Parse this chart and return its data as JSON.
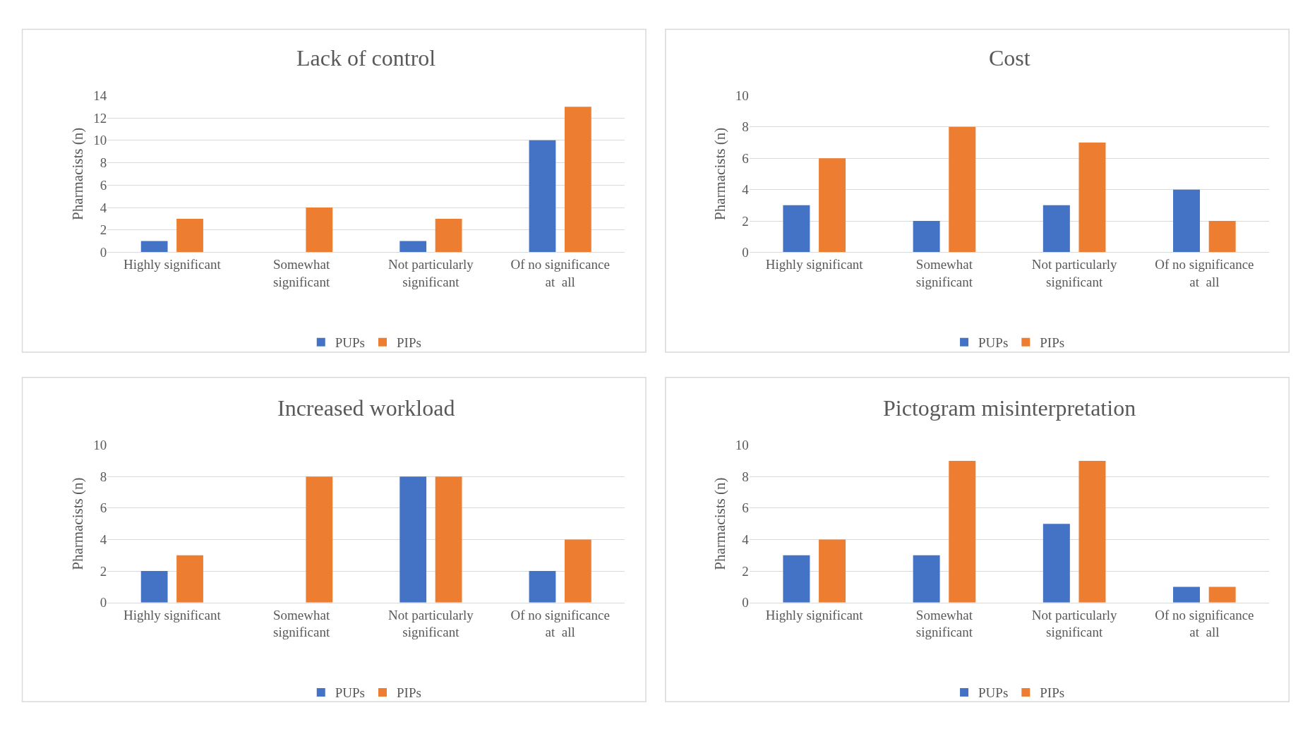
{
  "chart_data": [
    {
      "type": "bar",
      "title": "Lack of control",
      "ylabel": "Pharmacists (n)",
      "categories": [
        "Highly significant",
        "Somewhat\nsignificant",
        "Not particularly\nsignificant",
        "Of no significance\nat  all"
      ],
      "series": [
        {
          "name": "PUPs",
          "color": "#4472c4",
          "values": [
            1,
            0,
            1,
            10
          ]
        },
        {
          "name": "PIPs",
          "color": "#ed7d31",
          "values": [
            3,
            4,
            3,
            13
          ]
        }
      ],
      "ylim": [
        0,
        14
      ],
      "yticks": [
        0,
        2,
        4,
        6,
        8,
        10,
        12,
        14
      ],
      "grid": "y",
      "legend": "bottom"
    },
    {
      "type": "bar",
      "title": "Cost",
      "ylabel": "Pharmacists (n)",
      "categories": [
        "Highly significant",
        "Somewhat\nsignificant",
        "Not particularly\nsignificant",
        "Of no significance\nat  all"
      ],
      "series": [
        {
          "name": "PUPs",
          "color": "#4472c4",
          "values": [
            3,
            2,
            3,
            4
          ]
        },
        {
          "name": "PIPs",
          "color": "#ed7d31",
          "values": [
            6,
            8,
            7,
            2
          ]
        }
      ],
      "ylim": [
        0,
        10
      ],
      "yticks": [
        0,
        2,
        4,
        6,
        8,
        10
      ],
      "grid": "y",
      "legend": "bottom"
    },
    {
      "type": "bar",
      "title": "Increased workload",
      "ylabel": "Pharmacists (n)",
      "categories": [
        "Highly significant",
        "Somewhat\nsignificant",
        "Not particularly\nsignificant",
        "Of no significance\nat  all"
      ],
      "series": [
        {
          "name": "PUPs",
          "color": "#4472c4",
          "values": [
            2,
            0,
            8,
            2
          ]
        },
        {
          "name": "PIPs",
          "color": "#ed7d31",
          "values": [
            3,
            8,
            8,
            4
          ]
        }
      ],
      "ylim": [
        0,
        10
      ],
      "yticks": [
        0,
        2,
        4,
        6,
        8,
        10
      ],
      "grid": "y",
      "legend": "bottom"
    },
    {
      "type": "bar",
      "title": "Pictogram misinterpretation",
      "ylabel": "Pharmacists (n)",
      "categories": [
        "Highly significant",
        "Somewhat\nsignificant",
        "Not particularly\nsignificant",
        "Of no significance\nat  all"
      ],
      "series": [
        {
          "name": "PUPs",
          "color": "#4472c4",
          "values": [
            3,
            3,
            5,
            1
          ]
        },
        {
          "name": "PIPs",
          "color": "#ed7d31",
          "values": [
            4,
            9,
            9,
            1
          ]
        }
      ],
      "ylim": [
        0,
        10
      ],
      "yticks": [
        0,
        2,
        4,
        6,
        8,
        10
      ],
      "grid": "y",
      "legend": "bottom"
    }
  ]
}
